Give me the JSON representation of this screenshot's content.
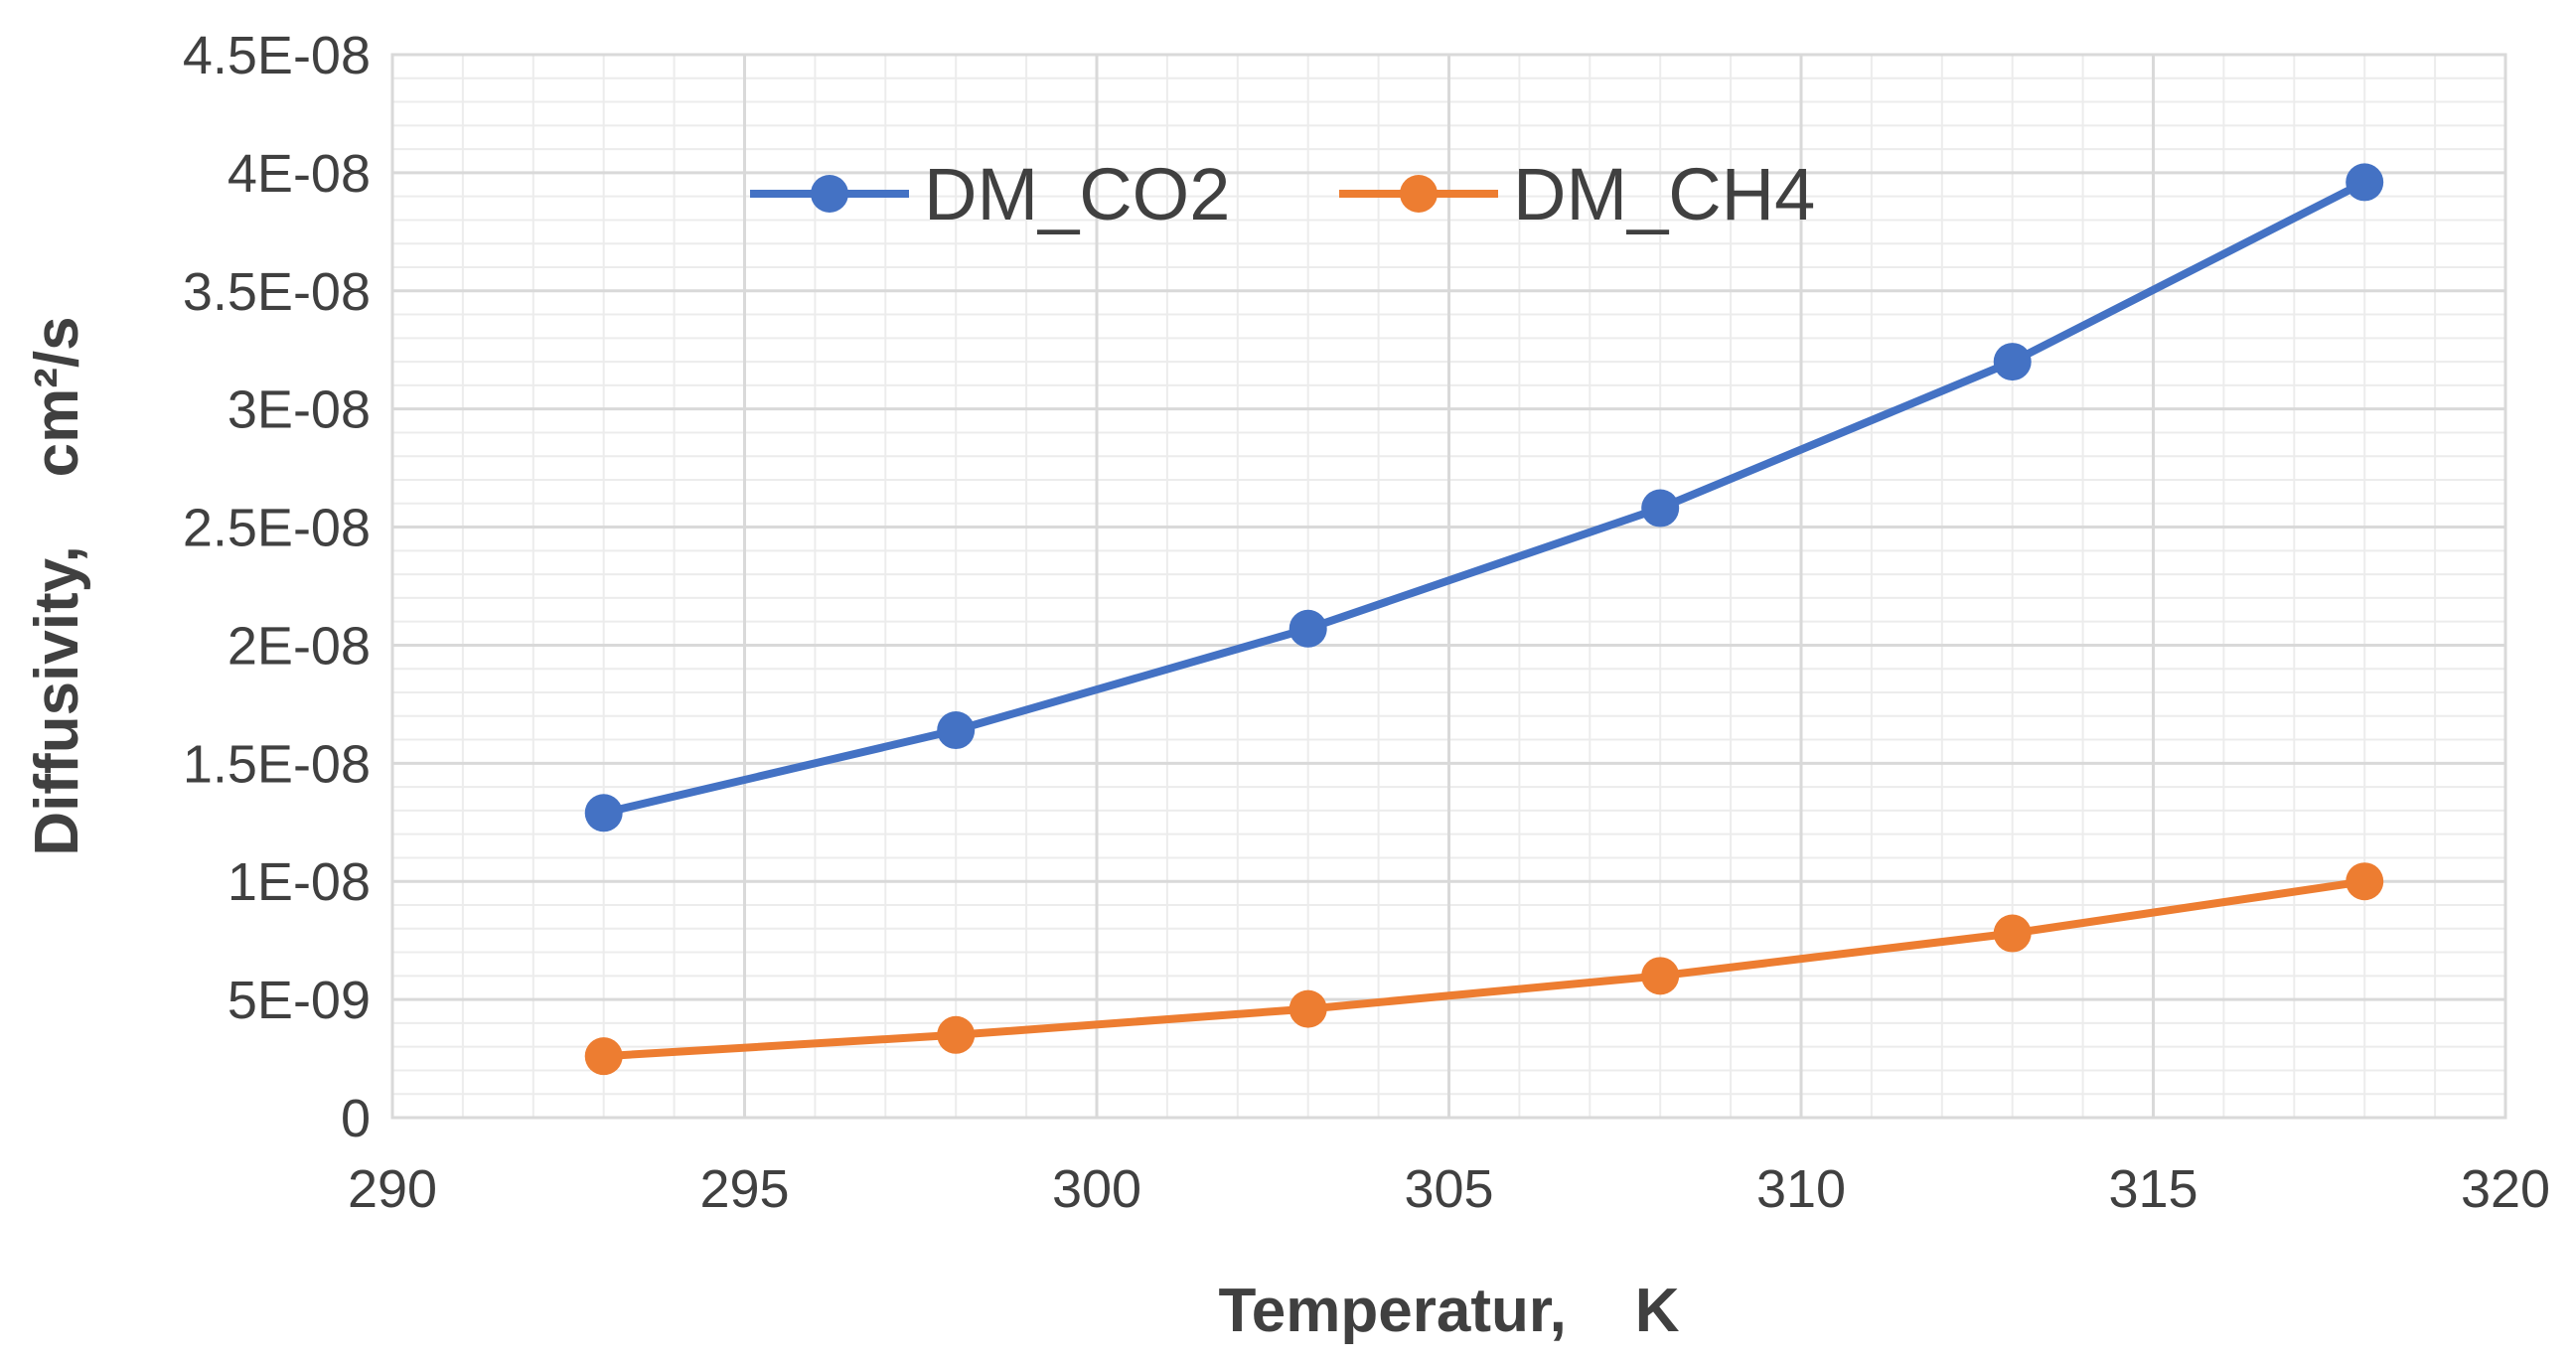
{
  "chart_data": {
    "type": "line",
    "xlabel": "Temperatur,    K",
    "ylabel": "Diffusivity,    cm²/s",
    "xlim": [
      290,
      320
    ],
    "ylim": [
      0,
      4.5e-08
    ],
    "grid": true,
    "x_ticks": [
      290,
      295,
      300,
      305,
      310,
      315,
      320
    ],
    "x_tick_labels": [
      "290",
      "295",
      "300",
      "305",
      "310",
      "315",
      "320"
    ],
    "y_ticks": [
      0,
      5e-09,
      1e-08,
      1.5e-08,
      2e-08,
      2.5e-08,
      3e-08,
      3.5e-08,
      4e-08,
      4.5e-08
    ],
    "y_tick_labels": [
      "0",
      "5E-09",
      "1E-08",
      "1.5E-08",
      "2E-08",
      "2.5E-08",
      "3E-08",
      "3.5E-08",
      "4E-08",
      "4.5E-08"
    ],
    "x": [
      293,
      298,
      303,
      308,
      313,
      318
    ],
    "legend_position": "top-center",
    "series": [
      {
        "name": "DM_CO2",
        "color": "#4472C4",
        "values": [
          1.29e-08,
          1.64e-08,
          2.07e-08,
          2.58e-08,
          3.2e-08,
          3.96e-08
        ]
      },
      {
        "name": "DM_CH4",
        "color": "#ED7D31",
        "values": [
          2.6e-09,
          3.5e-09,
          4.6e-09,
          6e-09,
          7.8e-09,
          1e-08
        ]
      }
    ]
  }
}
